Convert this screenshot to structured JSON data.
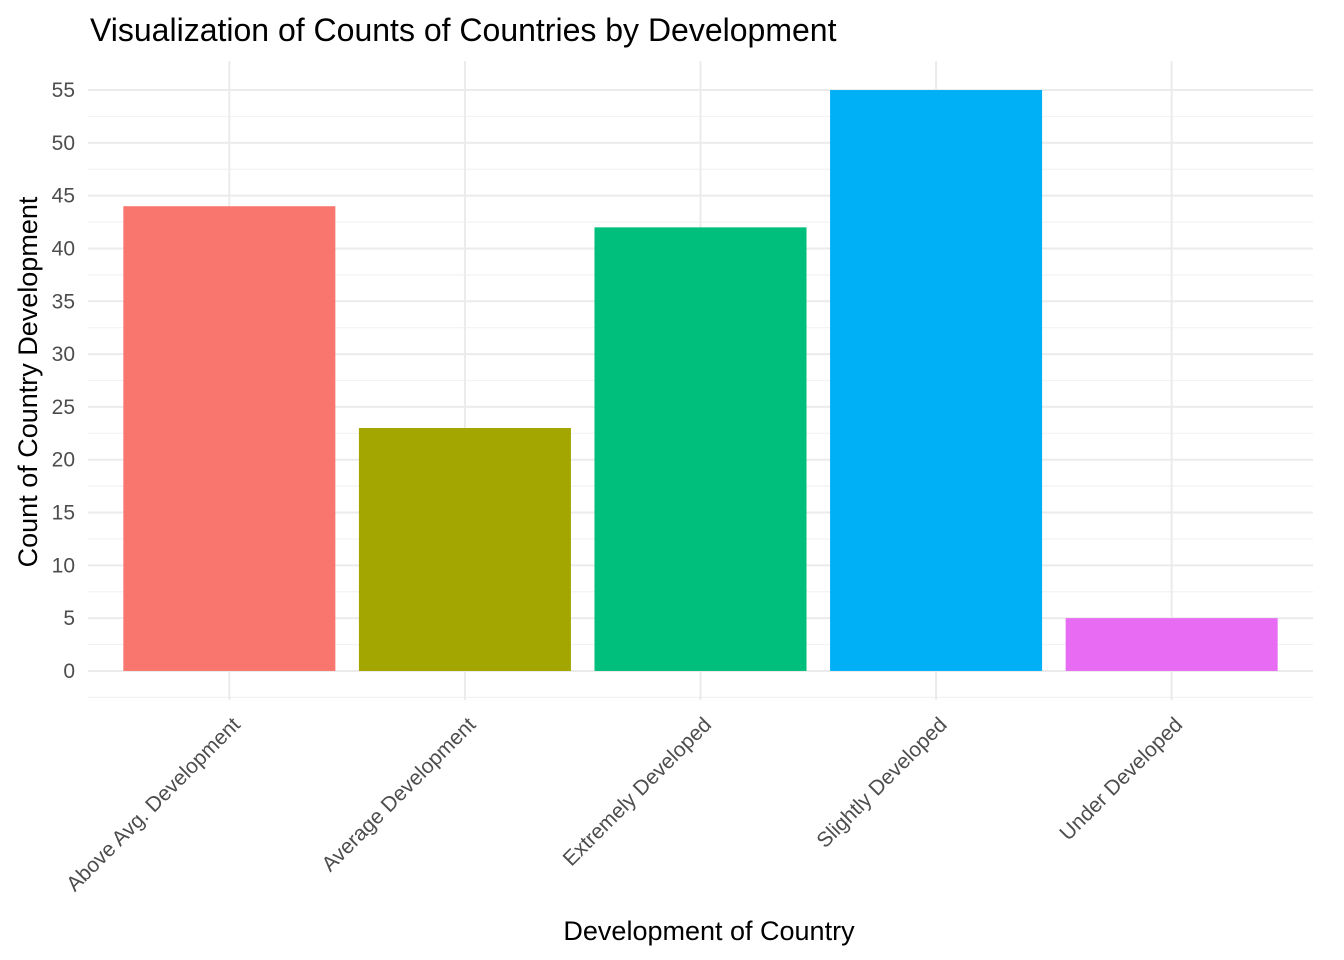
{
  "chart_data": {
    "type": "bar",
    "title": "Visualization of Counts of Countries by Development",
    "xlabel": "Development of Country",
    "ylabel": "Count of Country Development",
    "categories": [
      "Above Avg. Development",
      "Average Development",
      "Extremely Developed",
      "Slightly Developed",
      "Under Developed"
    ],
    "values": [
      44,
      23,
      42,
      55,
      5
    ],
    "colors": [
      "#F8766D",
      "#A3A500",
      "#00BF7D",
      "#00B0F6",
      "#E76BF3"
    ],
    "ylim": [
      -2.75,
      57.75
    ],
    "yticks": [
      0,
      5,
      10,
      15,
      20,
      25,
      30,
      35,
      40,
      45,
      50,
      55
    ],
    "grid": true,
    "legend": "none"
  }
}
